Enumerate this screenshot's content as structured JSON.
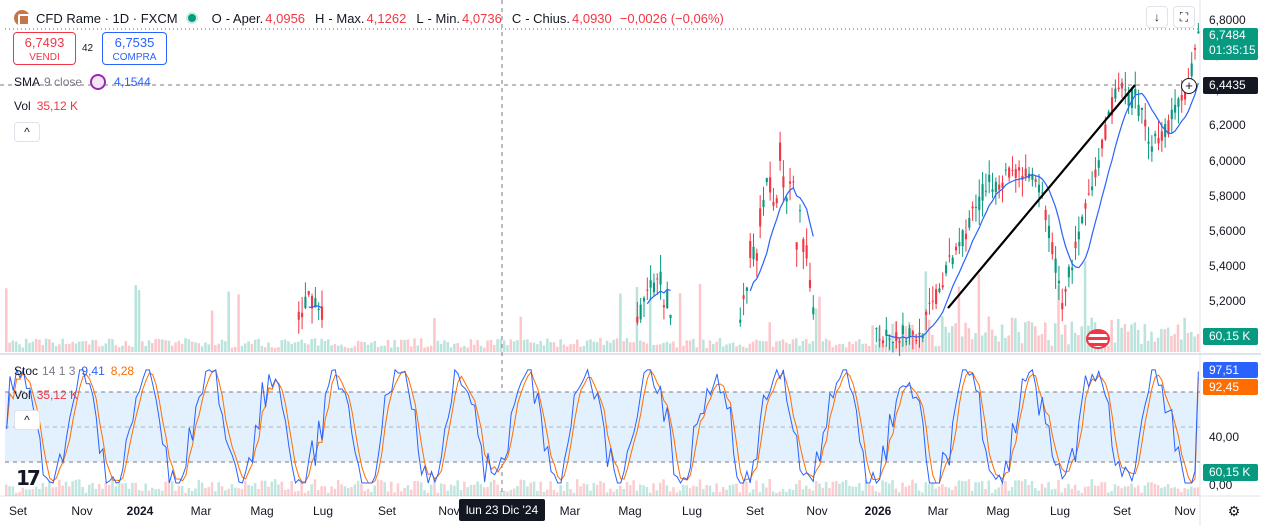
{
  "header": {
    "symbol_title": "CFD Rame · 1D · FXCM",
    "open_label": "O",
    "open_value": "- Aper.",
    "open_price": "4,0956",
    "high_label": "H",
    "high_text": "- Max.",
    "high_price": "4,1262",
    "low_label": "L",
    "low_text": "- Min.",
    "low_price": "4,0736",
    "close_label": "C",
    "close_text": "- Chius.",
    "close_price": "4,0930",
    "change": "−0,0026 (−0,06%)"
  },
  "trade": {
    "sell_price": "6,7493",
    "sell_label": "VENDI",
    "spread": "42",
    "buy_price": "6,7535",
    "buy_label": "COMPRA"
  },
  "indicators": {
    "sma_name": "SMA",
    "sma_params": "9 close",
    "sma_value": "4,1544",
    "vol_name": "Vol",
    "vol_value": "35,12 K",
    "stoch_name": "Stoc",
    "stoch_params": "14 1 3",
    "stoch_k": "9,41",
    "stoch_d": "8,28",
    "vol2_name": "Vol",
    "vol2_value": "35,12 K",
    "collapse_icon": "^"
  },
  "price_axis": {
    "ticks": [
      "6,8000",
      "6,6000",
      "6,4000",
      "6,2000",
      "6,0000",
      "5,8000",
      "5,6000",
      "5,4000",
      "5,2000"
    ],
    "last_price": "6,7484",
    "countdown": "01:35:15",
    "crosshair_price": "6,4435",
    "volume_tag": "60,15 K"
  },
  "stoch_axis": {
    "ticks": [
      "40,00",
      "0,00"
    ],
    "k_tag": "97,51",
    "d_tag": "92,45",
    "volume_tag": "60,15 K",
    "upper_band": 80,
    "lower_band": 20
  },
  "time_axis": {
    "labels": [
      "Set",
      "Nov",
      "2024",
      "Mar",
      "Mag",
      "Lug",
      "Set",
      "Nov",
      "Mar",
      "Mag",
      "Lug",
      "Set",
      "Nov",
      "2026",
      "Mar",
      "Mag",
      "Lug",
      "Set",
      "Nov"
    ],
    "crosshair_date": "lun 23 Dic '24"
  },
  "toolbar": {
    "download_icon": "↓",
    "fullscreen_icon": "⛶",
    "settings_icon": "⚙"
  },
  "colors": {
    "up": "#089981",
    "down": "#f23645",
    "sma": "#2962ff",
    "stoch_k": "#2962ff",
    "stoch_d": "#ff6d00",
    "band_fill": "#e3f0fd"
  },
  "chart_data": {
    "type": "candlestick",
    "title": "CFD Rame · 1D · FXCM",
    "y_range": [
      5.0,
      6.85
    ],
    "trendline": {
      "from_price": 5.16,
      "to_price": 6.43
    },
    "key_levels": {
      "last": 6.7484,
      "crosshair": 6.4435
    },
    "stochastic": {
      "k_last": 97.51,
      "d_last": 92.45,
      "bands": [
        20,
        80
      ]
    }
  }
}
